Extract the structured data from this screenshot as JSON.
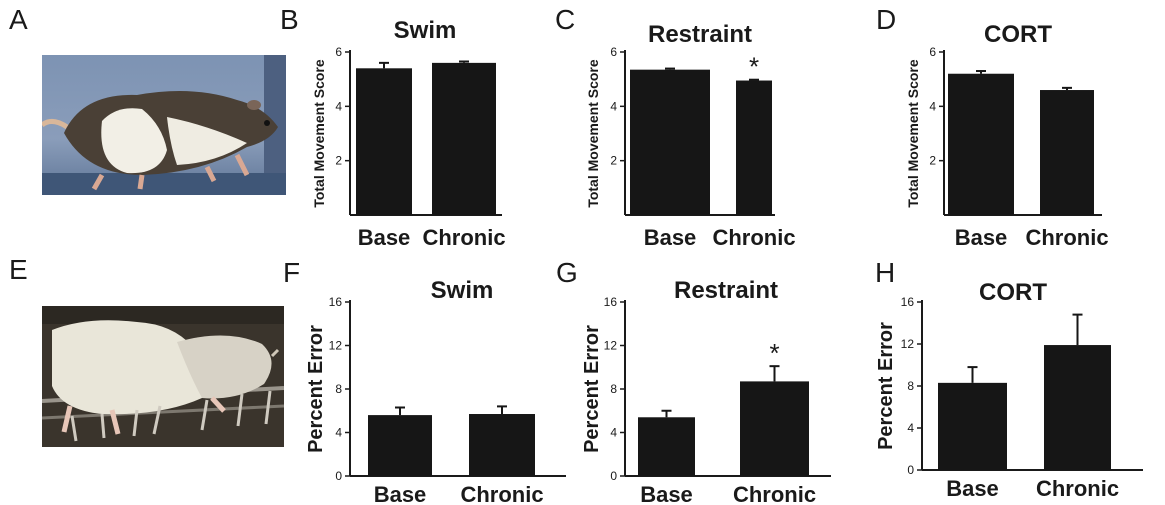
{
  "panel_letters": [
    "A",
    "B",
    "C",
    "D",
    "E",
    "F",
    "G",
    "H"
  ],
  "bar_color": "#161616",
  "chart_data": [
    {
      "panel": "B",
      "type": "bar",
      "title": "Swim",
      "ylabel": "Total Movement Score",
      "categories": [
        "Base",
        "Chronic"
      ],
      "values": [
        5.4,
        5.6
      ],
      "errors": [
        0.2,
        0.05
      ],
      "ylim": [
        0,
        6
      ],
      "yticks": [
        2,
        4,
        6
      ],
      "significance": []
    },
    {
      "panel": "C",
      "type": "bar",
      "title": "Restraint",
      "ylabel": "Total Movement Score",
      "categories": [
        "Base",
        "Chronic"
      ],
      "values": [
        5.35,
        4.95
      ],
      "errors": [
        0.04,
        0.03
      ],
      "ylim": [
        0,
        6
      ],
      "yticks": [
        2,
        4,
        6
      ],
      "significance": [
        "",
        "*"
      ]
    },
    {
      "panel": "D",
      "type": "bar",
      "title": "CORT",
      "ylabel": "Total Movement Score",
      "categories": [
        "Base",
        "Chronic"
      ],
      "values": [
        5.2,
        4.6
      ],
      "errors": [
        0.1,
        0.08
      ],
      "ylim": [
        0,
        6
      ],
      "yticks": [
        2,
        4,
        6
      ],
      "significance": []
    },
    {
      "panel": "F",
      "type": "bar",
      "title": "Swim",
      "ylabel": "Percent Error",
      "categories": [
        "Base",
        "Chronic"
      ],
      "values": [
        5.6,
        5.7
      ],
      "errors": [
        0.7,
        0.7
      ],
      "ylim": [
        0,
        16
      ],
      "yticks": [
        0,
        4,
        8,
        12,
        16
      ],
      "significance": []
    },
    {
      "panel": "G",
      "type": "bar",
      "title": "Restraint",
      "ylabel": "Percent Error",
      "categories": [
        "Base",
        "Chronic"
      ],
      "values": [
        5.4,
        8.7
      ],
      "errors": [
        0.6,
        1.4
      ],
      "ylim": [
        0,
        16
      ],
      "yticks": [
        0,
        4,
        8,
        12,
        16
      ],
      "significance": [
        "",
        "*"
      ]
    },
    {
      "panel": "H",
      "type": "bar",
      "title": "CORT",
      "ylabel": "Percent Error",
      "categories": [
        "Base",
        "Chronic"
      ],
      "values": [
        8.3,
        11.9
      ],
      "errors": [
        1.5,
        2.9
      ],
      "ylim": [
        0,
        16
      ],
      "yticks": [
        0,
        4,
        8,
        12,
        16
      ],
      "significance": []
    }
  ]
}
